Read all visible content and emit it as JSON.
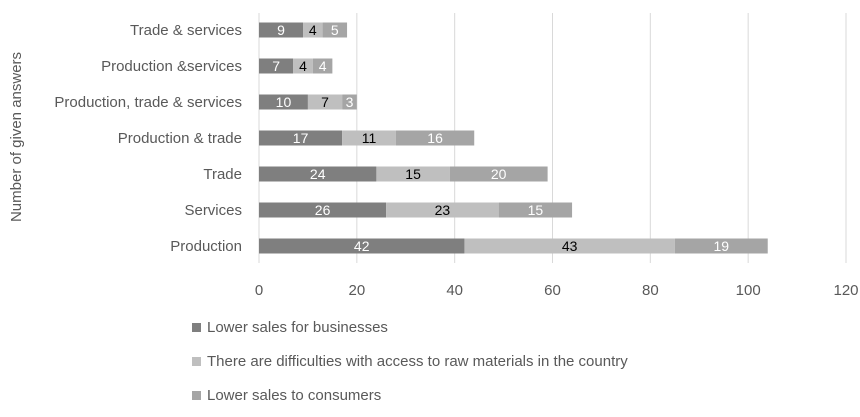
{
  "chart_data": {
    "type": "bar",
    "orientation": "horizontal",
    "stacked": true,
    "categories": [
      "Production",
      "Services",
      "Trade",
      "Production & trade",
      "Production, trade & services",
      "Production &services",
      "Trade & services"
    ],
    "series": [
      {
        "name": "Lower sales for businesses",
        "color": "#7f7f7f",
        "label_color": "#ffffff",
        "values": [
          42,
          26,
          24,
          17,
          10,
          7,
          9
        ]
      },
      {
        "name": "There are difficulties with access to raw materials in the country",
        "color": "#bfbfbf",
        "label_color": "#000000",
        "values": [
          43,
          23,
          15,
          11,
          7,
          4,
          4
        ]
      },
      {
        "name": "Lower sales to consumers",
        "color": "#a5a5a5",
        "label_color": "#ffffff",
        "values": [
          19,
          15,
          20,
          16,
          3,
          4,
          5
        ]
      }
    ],
    "xlim": [
      0,
      120
    ],
    "xticks": [
      0,
      20,
      40,
      60,
      80,
      100,
      120
    ],
    "xlabel": "",
    "ylabel": "Number of given answers",
    "grid": true,
    "legend_position": "bottom"
  }
}
